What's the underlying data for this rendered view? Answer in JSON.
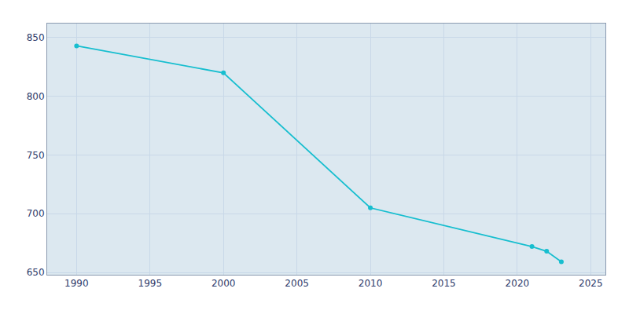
{
  "chart_data": {
    "type": "line",
    "x": [
      1990,
      2000,
      2010,
      2021,
      2022,
      2023
    ],
    "values": [
      843,
      820,
      705,
      672,
      668,
      659
    ],
    "color": "#17becf",
    "marker": "circle",
    "xlim": [
      1988,
      2026
    ],
    "ylim": [
      648,
      862
    ],
    "xticks": [
      1990,
      1995,
      2000,
      2005,
      2010,
      2015,
      2020,
      2025
    ],
    "yticks": [
      650,
      700,
      750,
      800,
      850
    ],
    "grid": true
  }
}
